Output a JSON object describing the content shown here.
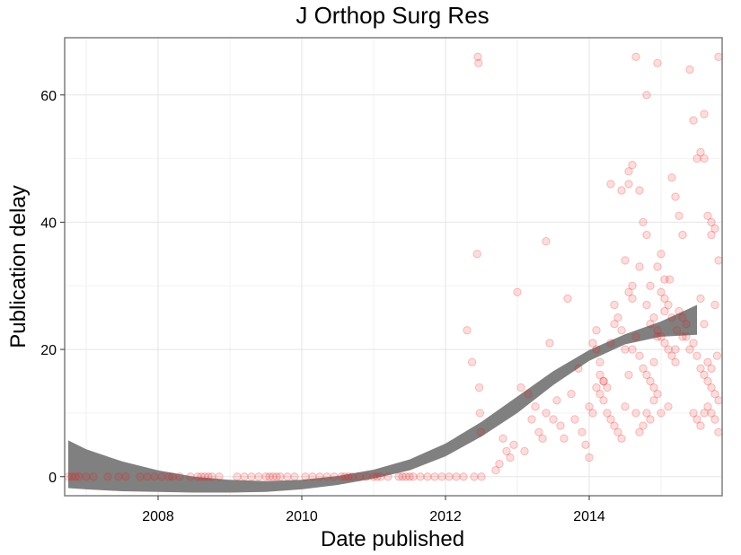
{
  "chart_data": {
    "type": "scatter",
    "title": "J Orthop Surg Res",
    "xlabel": "Date published",
    "ylabel": "Publication delay",
    "x_unit": "year",
    "xlim": [
      2006.7,
      2015.85
    ],
    "ylim": [
      -3,
      69
    ],
    "x_ticks": [
      2008,
      2010,
      2012,
      2014
    ],
    "x_tick_labels": [
      "2008",
      "2010",
      "2012",
      "2014"
    ],
    "y_ticks": [
      0,
      20,
      40,
      60
    ],
    "y_tick_labels": [
      "0",
      "20",
      "40",
      "60"
    ],
    "grid": true,
    "point_color": "#e41a1c",
    "point_opacity": 0.15,
    "smooth_color": "#808080",
    "points": [
      [
        2006.75,
        0
      ],
      [
        2006.8,
        0
      ],
      [
        2006.85,
        0
      ],
      [
        2006.9,
        0
      ],
      [
        2007.0,
        0
      ],
      [
        2007.1,
        0
      ],
      [
        2007.3,
        0
      ],
      [
        2007.45,
        0
      ],
      [
        2007.55,
        0
      ],
      [
        2007.75,
        0
      ],
      [
        2007.85,
        0
      ],
      [
        2007.95,
        0
      ],
      [
        2008.05,
        0
      ],
      [
        2008.15,
        0
      ],
      [
        2008.2,
        0
      ],
      [
        2008.3,
        0
      ],
      [
        2008.45,
        0
      ],
      [
        2008.55,
        0
      ],
      [
        2008.6,
        0
      ],
      [
        2008.65,
        0
      ],
      [
        2008.7,
        0
      ],
      [
        2008.75,
        0
      ],
      [
        2008.85,
        0
      ],
      [
        2009.1,
        0
      ],
      [
        2009.2,
        0
      ],
      [
        2009.3,
        0
      ],
      [
        2009.4,
        0
      ],
      [
        2009.5,
        0
      ],
      [
        2009.55,
        0
      ],
      [
        2009.6,
        0
      ],
      [
        2009.65,
        0
      ],
      [
        2009.7,
        0
      ],
      [
        2009.8,
        0
      ],
      [
        2009.9,
        0
      ],
      [
        2010.05,
        0
      ],
      [
        2010.15,
        0
      ],
      [
        2010.25,
        0
      ],
      [
        2010.35,
        0
      ],
      [
        2010.45,
        0
      ],
      [
        2010.55,
        0
      ],
      [
        2010.6,
        0
      ],
      [
        2010.65,
        0
      ],
      [
        2010.7,
        0
      ],
      [
        2010.8,
        0
      ],
      [
        2010.9,
        0
      ],
      [
        2011.0,
        0
      ],
      [
        2011.05,
        0
      ],
      [
        2011.1,
        0
      ],
      [
        2011.2,
        0
      ],
      [
        2011.35,
        0
      ],
      [
        2011.4,
        0
      ],
      [
        2011.45,
        0
      ],
      [
        2011.5,
        0
      ],
      [
        2011.55,
        0
      ],
      [
        2011.65,
        0
      ],
      [
        2011.75,
        0
      ],
      [
        2011.85,
        0
      ],
      [
        2011.95,
        0
      ],
      [
        2012.05,
        0
      ],
      [
        2012.15,
        0
      ],
      [
        2012.25,
        0
      ],
      [
        2012.4,
        0
      ],
      [
        2012.5,
        0
      ],
      [
        2012.3,
        23
      ],
      [
        2012.37,
        18
      ],
      [
        2012.45,
        66
      ],
      [
        2012.46,
        65
      ],
      [
        2012.44,
        35
      ],
      [
        2012.47,
        14
      ],
      [
        2012.48,
        10
      ],
      [
        2012.49,
        7
      ],
      [
        2012.7,
        1
      ],
      [
        2012.75,
        2
      ],
      [
        2012.8,
        6
      ],
      [
        2012.85,
        4
      ],
      [
        2012.9,
        3
      ],
      [
        2012.95,
        5
      ],
      [
        2013.0,
        29
      ],
      [
        2013.05,
        14
      ],
      [
        2013.1,
        4
      ],
      [
        2013.15,
        13
      ],
      [
        2013.2,
        9
      ],
      [
        2013.25,
        11
      ],
      [
        2013.3,
        7
      ],
      [
        2013.35,
        6
      ],
      [
        2013.4,
        10
      ],
      [
        2013.45,
        21
      ],
      [
        2013.4,
        37
      ],
      [
        2013.5,
        9
      ],
      [
        2013.55,
        12
      ],
      [
        2013.6,
        8
      ],
      [
        2013.65,
        6
      ],
      [
        2013.7,
        28
      ],
      [
        2013.75,
        13
      ],
      [
        2013.8,
        9
      ],
      [
        2013.85,
        17
      ],
      [
        2013.9,
        7
      ],
      [
        2013.95,
        5
      ],
      [
        2014.0,
        3
      ],
      [
        2014.05,
        21
      ],
      [
        2014.1,
        23
      ],
      [
        2014.15,
        18
      ],
      [
        2014.2,
        12
      ],
      [
        2014.25,
        10
      ],
      [
        2014.3,
        9
      ],
      [
        2014.35,
        8
      ],
      [
        2014.4,
        7
      ],
      [
        2014.45,
        6
      ],
      [
        2014.5,
        11
      ],
      [
        2014.55,
        46
      ],
      [
        2014.6,
        20
      ],
      [
        2014.65,
        10
      ],
      [
        2014.7,
        7
      ],
      [
        2014.75,
        8
      ],
      [
        2014.8,
        10
      ],
      [
        2014.85,
        9
      ],
      [
        2014.9,
        12
      ],
      [
        2014.95,
        13
      ],
      [
        2014.0,
        11
      ],
      [
        2014.05,
        10
      ],
      [
        2014.1,
        20
      ],
      [
        2014.15,
        16
      ],
      [
        2014.2,
        15
      ],
      [
        2014.25,
        14
      ],
      [
        2014.3,
        46
      ],
      [
        2014.35,
        24
      ],
      [
        2014.4,
        25
      ],
      [
        2014.45,
        45
      ],
      [
        2014.5,
        34
      ],
      [
        2014.55,
        29
      ],
      [
        2014.6,
        28
      ],
      [
        2014.65,
        22
      ],
      [
        2014.7,
        19
      ],
      [
        2014.75,
        17
      ],
      [
        2014.8,
        16
      ],
      [
        2014.85,
        15
      ],
      [
        2014.9,
        14
      ],
      [
        2014.95,
        22
      ],
      [
        2014.55,
        48
      ],
      [
        2014.6,
        49
      ],
      [
        2014.65,
        66
      ],
      [
        2014.7,
        45
      ],
      [
        2014.75,
        40
      ],
      [
        2014.8,
        38
      ],
      [
        2014.85,
        30
      ],
      [
        2014.9,
        25
      ],
      [
        2014.95,
        23
      ],
      [
        2015.0,
        22
      ],
      [
        2015.05,
        21
      ],
      [
        2015.1,
        20
      ],
      [
        2015.15,
        19
      ],
      [
        2015.2,
        18
      ],
      [
        2014.8,
        60
      ],
      [
        2014.95,
        65
      ],
      [
        2015.0,
        35
      ],
      [
        2015.05,
        31
      ],
      [
        2015.1,
        27
      ],
      [
        2015.15,
        47
      ],
      [
        2015.2,
        44
      ],
      [
        2015.25,
        26
      ],
      [
        2015.3,
        25
      ],
      [
        2015.35,
        24
      ],
      [
        2015.4,
        64
      ],
      [
        2015.45,
        56
      ],
      [
        2015.5,
        50
      ],
      [
        2015.55,
        51
      ],
      [
        2015.6,
        57
      ],
      [
        2015.65,
        41
      ],
      [
        2015.7,
        40
      ],
      [
        2015.75,
        39
      ],
      [
        2015.8,
        34
      ],
      [
        2015.8,
        66
      ],
      [
        2015.45,
        21
      ],
      [
        2015.5,
        19
      ],
      [
        2015.55,
        17
      ],
      [
        2015.6,
        16
      ],
      [
        2015.65,
        15
      ],
      [
        2015.7,
        14
      ],
      [
        2015.75,
        13
      ],
      [
        2015.8,
        12
      ],
      [
        2015.45,
        10
      ],
      [
        2015.5,
        9
      ],
      [
        2015.55,
        8
      ],
      [
        2015.6,
        10
      ],
      [
        2015.65,
        11
      ],
      [
        2015.7,
        10
      ],
      [
        2015.75,
        9
      ],
      [
        2015.8,
        7
      ],
      [
        2015.3,
        22
      ],
      [
        2015.35,
        22
      ],
      [
        2015.4,
        20
      ],
      [
        2015.55,
        28
      ],
      [
        2015.6,
        24
      ],
      [
        2015.65,
        18
      ],
      [
        2015.7,
        17
      ],
      [
        2015.75,
        27
      ],
      [
        2015.78,
        19
      ],
      [
        2015.0,
        10
      ],
      [
        2015.1,
        11
      ],
      [
        2015.2,
        20
      ],
      [
        2014.9,
        18
      ],
      [
        2015.0,
        29
      ],
      [
        2015.05,
        26
      ],
      [
        2015.12,
        31
      ],
      [
        2015.25,
        41
      ],
      [
        2015.3,
        38
      ],
      [
        2015.6,
        50
      ],
      [
        2015.7,
        38
      ],
      [
        2014.35,
        27
      ],
      [
        2014.3,
        21
      ],
      [
        2014.2,
        15
      ],
      [
        2014.1,
        14
      ],
      [
        2014.15,
        13
      ],
      [
        2014.45,
        23
      ],
      [
        2014.5,
        20
      ],
      [
        2014.55,
        16
      ],
      [
        2014.6,
        30
      ],
      [
        2014.7,
        33
      ],
      [
        2014.8,
        27
      ],
      [
        2014.85,
        24
      ],
      [
        2014.95,
        33
      ],
      [
        2015.05,
        28
      ],
      [
        2015.15,
        25
      ],
      [
        2015.22,
        23
      ]
    ],
    "smooth_band": {
      "x": [
        2006.75,
        2007.0,
        2007.5,
        2008.0,
        2008.5,
        2009.0,
        2009.5,
        2010.0,
        2010.5,
        2011.0,
        2011.5,
        2012.0,
        2012.5,
        2013.0,
        2013.5,
        2014.0,
        2014.5,
        2015.0,
        2015.5
      ],
      "lower": [
        -1.8,
        -2.0,
        -2.3,
        -2.4,
        -2.5,
        -2.5,
        -2.4,
        -2.0,
        -1.3,
        -0.3,
        1.0,
        3.2,
        6.3,
        10.0,
        14.4,
        18.2,
        20.8,
        22.0,
        22.3
      ],
      "upper": [
        5.7,
        4.3,
        2.4,
        1.0,
        0.0,
        -0.5,
        -0.7,
        -0.5,
        0.1,
        1.1,
        2.7,
        5.2,
        8.6,
        12.6,
        16.6,
        19.9,
        22.4,
        24.4,
        27.0
      ]
    }
  }
}
